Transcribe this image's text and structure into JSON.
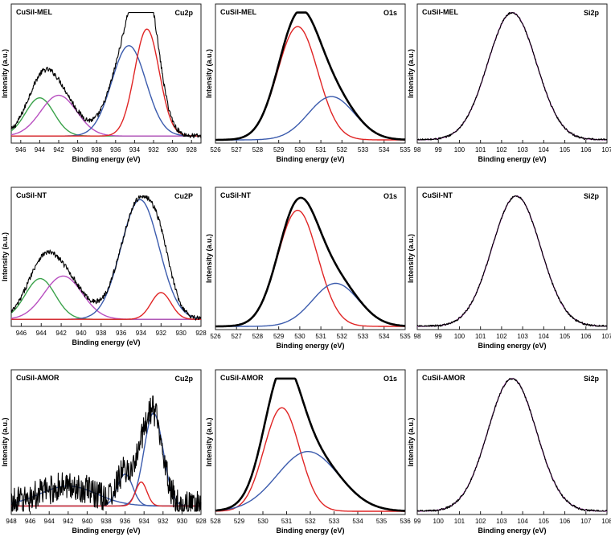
{
  "figure": {
    "ylabel": "Intensity (a.u.)",
    "xlabel": "Binding energy (eV)"
  },
  "chart_data": [
    {
      "id": "mel-cu2p",
      "type": "line",
      "sample": "CuSil-MEL",
      "core_level": "Cu2p",
      "xlim": [
        947,
        927
      ],
      "ticks": [
        946,
        944,
        942,
        940,
        938,
        936,
        934,
        932,
        930,
        928
      ],
      "tick_labels": [
        "946",
        "944",
        "942",
        "940",
        "938",
        "936",
        "934",
        "932",
        "930",
        "928"
      ],
      "noise": 0.02,
      "baseline": 0.03,
      "ymax": 1.0,
      "series": [
        {
          "name": "satellite-1",
          "color": "#3aa24a",
          "center": 944.0,
          "height": 0.3,
          "width": 1.5
        },
        {
          "name": "satellite-2",
          "color": "#b84fc0",
          "center": 942.0,
          "height": 0.32,
          "width": 1.9
        },
        {
          "name": "peak-1",
          "color": "#3b5bad",
          "center": 934.6,
          "height": 0.71,
          "width": 1.8
        },
        {
          "name": "peak-2",
          "color": "#e02525",
          "center": 932.7,
          "height": 0.84,
          "width": 1.3
        }
      ]
    },
    {
      "id": "mel-o1s",
      "type": "line",
      "sample": "CuSil-MEL",
      "core_level": "O1s",
      "xlim": [
        526,
        535
      ],
      "ticks": [
        526,
        527,
        528,
        529,
        530,
        531,
        532,
        533,
        534,
        535
      ],
      "tick_labels": [
        "526",
        "527",
        "528",
        "529",
        "530",
        "531",
        "532",
        "533",
        "534",
        "535"
      ],
      "noise": 0.0,
      "baseline": 0.0,
      "ymax": 1.0,
      "series": [
        {
          "name": "component-1",
          "color": "#e02525",
          "center": 529.9,
          "height": 0.89,
          "width": 0.95
        },
        {
          "name": "component-2",
          "color": "#3b5bad",
          "center": 531.5,
          "height": 0.34,
          "width": 1.1
        }
      ]
    },
    {
      "id": "mel-si2p",
      "type": "line",
      "sample": "CuSil-MEL",
      "core_level": "Si2p",
      "xlim": [
        98,
        107
      ],
      "ticks": [
        98,
        99,
        100,
        101,
        102,
        103,
        104,
        105,
        106,
        107
      ],
      "tick_labels": [
        "98",
        "99",
        "100",
        "101",
        "102",
        "103",
        "104",
        "105",
        "106",
        "107"
      ],
      "noise": 0.008,
      "baseline": 0.0,
      "ymax": 1.0,
      "series": [
        {
          "name": "fit",
          "color": "#b84fc0",
          "center": 102.5,
          "height": 1.0,
          "width": 1.15
        }
      ]
    },
    {
      "id": "nt-cu2p",
      "type": "line",
      "sample": "CuSil-NT",
      "core_level": "Cu2P",
      "xlim": [
        947,
        928
      ],
      "ticks": [
        946,
        944,
        942,
        940,
        938,
        936,
        934,
        932,
        930,
        928
      ],
      "tick_labels": [
        "946",
        "944",
        "942",
        "940",
        "938",
        "936",
        "934",
        "932",
        "930",
        "928"
      ],
      "noise": 0.02,
      "baseline": 0.03,
      "ymax": 1.0,
      "series": [
        {
          "name": "satellite-1",
          "color": "#3aa24a",
          "center": 944.1,
          "height": 0.32,
          "width": 1.5
        },
        {
          "name": "satellite-2",
          "color": "#b84fc0",
          "center": 941.8,
          "height": 0.34,
          "width": 1.9
        },
        {
          "name": "peak-1",
          "color": "#3b5bad",
          "center": 934.1,
          "height": 0.94,
          "width": 1.9
        },
        {
          "name": "peak-2",
          "color": "#e02525",
          "center": 932.0,
          "height": 0.21,
          "width": 1.0
        }
      ]
    },
    {
      "id": "nt-o1s",
      "type": "line",
      "sample": "CuSil-NT",
      "core_level": "O1s",
      "xlim": [
        526,
        535
      ],
      "ticks": [
        526,
        527,
        528,
        529,
        530,
        531,
        532,
        533,
        534,
        535
      ],
      "tick_labels": [
        "526",
        "527",
        "528",
        "529",
        "530",
        "531",
        "532",
        "533",
        "534",
        "535"
      ],
      "noise": 0.0,
      "baseline": 0.0,
      "ymax": 1.0,
      "series": [
        {
          "name": "component-1",
          "color": "#e02525",
          "center": 529.9,
          "height": 0.89,
          "width": 0.95
        },
        {
          "name": "component-2",
          "color": "#3b5bad",
          "center": 531.7,
          "height": 0.33,
          "width": 1.1
        }
      ]
    },
    {
      "id": "nt-si2p",
      "type": "line",
      "sample": "CuSil-NT",
      "core_level": "Si2p",
      "xlim": [
        98,
        107
      ],
      "ticks": [
        98,
        99,
        100,
        101,
        102,
        103,
        104,
        105,
        106,
        107
      ],
      "tick_labels": [
        "98",
        "99",
        "100",
        "101",
        "102",
        "103",
        "104",
        "105",
        "106",
        "107"
      ],
      "noise": 0.008,
      "baseline": 0.0,
      "ymax": 1.0,
      "series": [
        {
          "name": "fit",
          "color": "#b84fc0",
          "center": 102.7,
          "height": 1.0,
          "width": 1.15
        }
      ]
    },
    {
      "id": "amor-cu2p",
      "type": "line",
      "sample": "CuSil-AMOR",
      "core_level": "Cu2p",
      "xlim": [
        948,
        928
      ],
      "ticks": [
        948,
        946,
        944,
        942,
        940,
        938,
        936,
        934,
        932,
        930,
        928
      ],
      "tick_labels": [
        "948",
        "946",
        "944",
        "942",
        "940",
        "938",
        "936",
        "934",
        "932",
        "930",
        "928"
      ],
      "noise": 0.11,
      "baseline": 0.04,
      "ymax": 1.0,
      "series": [
        {
          "name": "satellite",
          "color": "#3b5bad",
          "center": 942.0,
          "height": 0.15,
          "width": 3.0
        },
        {
          "name": "peak-1",
          "color": "#3b5bad",
          "center": 936.0,
          "height": 0.24,
          "width": 0.8
        },
        {
          "name": "peak-2",
          "color": "#3b5bad",
          "center": 933.0,
          "height": 0.7,
          "width": 1.0
        },
        {
          "name": "peak-3",
          "color": "#e02525",
          "center": 934.3,
          "height": 0.18,
          "width": 0.6
        }
      ]
    },
    {
      "id": "amor-o1s",
      "type": "line",
      "sample": "CuSil-AMOR",
      "core_level": "O1s",
      "xlim": [
        528,
        536
      ],
      "ticks": [
        528,
        529,
        530,
        531,
        532,
        533,
        534,
        535,
        536
      ],
      "tick_labels": [
        "528",
        "529",
        "530",
        "531",
        "532",
        "533",
        "534",
        "535",
        "536"
      ],
      "noise": 0.0,
      "baseline": 0.0,
      "ymax": 1.0,
      "series": [
        {
          "name": "component-1",
          "color": "#e02525",
          "center": 530.8,
          "height": 0.78,
          "width": 0.75
        },
        {
          "name": "component-2",
          "color": "#3b5bad",
          "center": 531.9,
          "height": 0.45,
          "width": 1.3
        }
      ]
    },
    {
      "id": "amor-si2p",
      "type": "line",
      "sample": "CuSil-AMOR",
      "core_level": "Si2p",
      "xlim": [
        99,
        108
      ],
      "ticks": [
        99,
        100,
        101,
        102,
        103,
        104,
        105,
        106,
        107,
        108
      ],
      "tick_labels": [
        "99",
        "100",
        "101",
        "102",
        "103",
        "104",
        "105",
        "106",
        "107",
        "108"
      ],
      "noise": 0.008,
      "baseline": 0.0,
      "ymax": 1.0,
      "series": [
        {
          "name": "fit",
          "color": "#b84fc0",
          "center": 103.5,
          "height": 1.0,
          "width": 1.15
        }
      ]
    }
  ]
}
